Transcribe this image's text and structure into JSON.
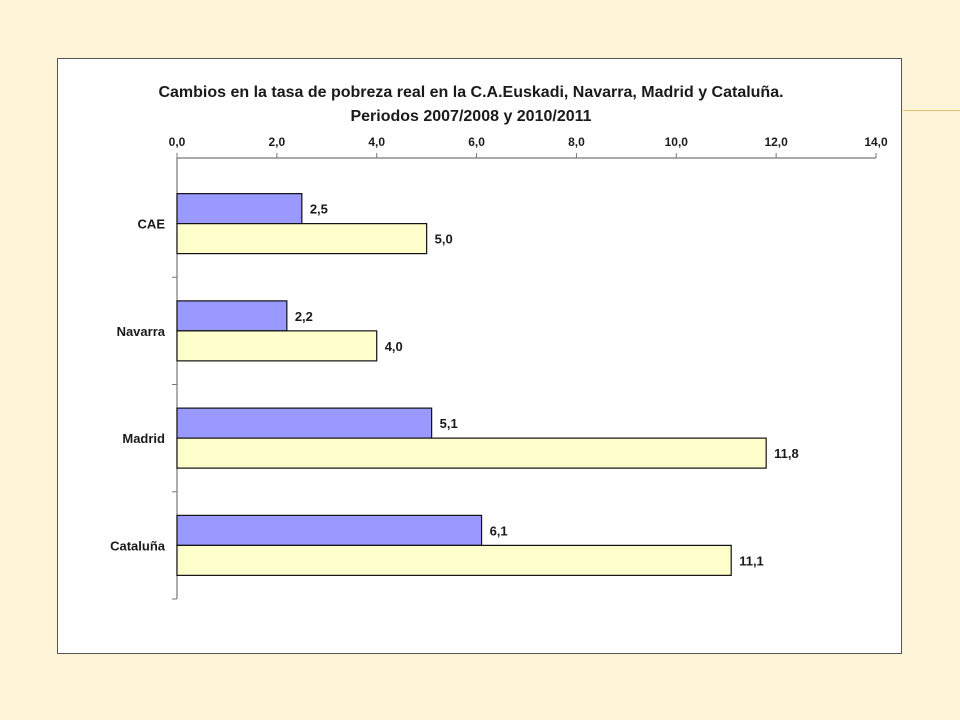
{
  "chart_data": {
    "type": "bar",
    "orientation": "horizontal",
    "title_lines": [
      "Cambios  en la tasa de pobreza real en la C.A.Euskadi, Navarra, Madrid y Cataluña.",
      "Periodos 2007/2008 y 2010/2011"
    ],
    "categories": [
      "CAE",
      "Navarra",
      "Madrid",
      "Cataluña"
    ],
    "series": [
      {
        "values": [
          2.5,
          2.2,
          5.1,
          6.1
        ],
        "color": "#9999ff"
      },
      {
        "values": [
          5.0,
          4.0,
          11.8,
          11.1
        ],
        "color": "#ffffcc"
      }
    ],
    "data_labels": [
      [
        "2,5",
        "2,2",
        "5,1",
        "6,1"
      ],
      [
        "5,0",
        "4,0",
        "11,8",
        "11,1"
      ]
    ],
    "x_ticks": [
      "0,0",
      "2,0",
      "4,0",
      "6,0",
      "8,0",
      "10,0",
      "12,0",
      "14,0"
    ],
    "xlim": [
      0,
      14
    ],
    "x_axis_position": "top",
    "grid": false,
    "legend": "none"
  }
}
